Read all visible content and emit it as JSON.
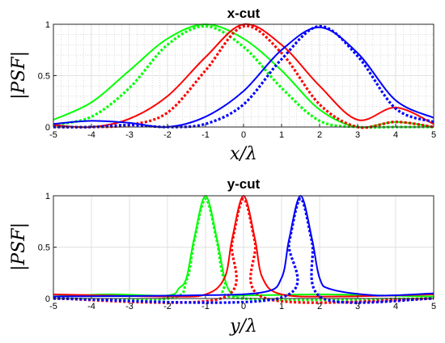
{
  "chart_data": [
    {
      "type": "line",
      "title": "x-cut",
      "xlabel": "x/λ",
      "ylabel": "|PSF|",
      "xlim": [
        -5,
        5
      ],
      "ylim": [
        0,
        1
      ],
      "xticks": [
        "-5",
        "-4",
        "-3",
        "-2",
        "-1",
        "0",
        "1",
        "2",
        "3",
        "4",
        "5"
      ],
      "yticks": [
        "0",
        "0.5",
        "1"
      ],
      "grid": "major and minor",
      "series": [
        {
          "color": "#00ff00",
          "style": "solid",
          "x": [
            -5,
            -4,
            -3,
            -2,
            -1,
            0,
            1,
            2,
            3,
            4,
            5
          ],
          "y": [
            0.07,
            0.24,
            0.55,
            0.86,
            1.0,
            0.86,
            0.55,
            0.17,
            0.0,
            0.05,
            0.0
          ]
        },
        {
          "color": "#00ff00",
          "style": "dotted",
          "x": [
            -5,
            -4,
            -3,
            -2,
            -1,
            0,
            1,
            2,
            3,
            4,
            5
          ],
          "y": [
            0.02,
            0.1,
            0.38,
            0.8,
            0.98,
            0.78,
            0.38,
            0.06,
            0.0,
            0.0,
            0.0
          ]
        },
        {
          "color": "#ff0000",
          "style": "solid",
          "x": [
            -5,
            -4,
            -3,
            -2,
            -1,
            0,
            1,
            2,
            3,
            4,
            5
          ],
          "y": [
            0.02,
            0.0,
            0.08,
            0.3,
            0.68,
            1.0,
            0.8,
            0.4,
            0.07,
            0.19,
            0.03
          ]
        },
        {
          "color": "#ff0000",
          "style": "dotted",
          "x": [
            -5,
            -4,
            -3,
            -2,
            -1,
            0,
            1,
            2,
            3,
            4,
            5
          ],
          "y": [
            0.0,
            0.0,
            0.02,
            0.14,
            0.55,
            0.98,
            0.72,
            0.22,
            0.0,
            0.05,
            0.0
          ]
        },
        {
          "color": "#0000ff",
          "style": "solid",
          "x": [
            -5,
            -4,
            -3,
            -2,
            -1,
            0,
            1,
            2,
            3,
            4,
            5
          ],
          "y": [
            0.03,
            0.06,
            0.04,
            0.0,
            0.1,
            0.35,
            0.75,
            0.97,
            0.72,
            0.26,
            0.09
          ]
        },
        {
          "color": "#0000ff",
          "style": "dotted",
          "x": [
            -5,
            -4,
            -3,
            -2,
            -1,
            0,
            1,
            2,
            3,
            4,
            5
          ],
          "y": [
            0.0,
            0.0,
            0.02,
            0.0,
            0.03,
            0.22,
            0.66,
            0.98,
            0.69,
            0.18,
            0.05
          ]
        }
      ]
    },
    {
      "type": "line",
      "title": "y-cut",
      "xlabel": "y/λ",
      "ylabel": "|PSF|",
      "xlim": [
        -5,
        5
      ],
      "ylim": [
        0,
        1
      ],
      "xticks": [
        "-5",
        "-4",
        "-3",
        "-2",
        "-1",
        "0",
        "1",
        "2",
        "3",
        "4",
        "5"
      ],
      "yticks": [
        "0",
        "0.5",
        "1"
      ],
      "grid": "major",
      "series": [
        {
          "color": "#00ff00",
          "style": "solid",
          "x": [
            -5,
            -3.5,
            -2,
            -1.7,
            -1.5,
            -1.3,
            -1.0,
            -0.7,
            -0.5,
            -0.3,
            0,
            2,
            3.5,
            5
          ],
          "y": [
            0.02,
            0.04,
            0.03,
            0.1,
            0.2,
            0.58,
            1.0,
            0.58,
            0.2,
            0.04,
            0.03,
            0.04,
            0.03,
            0.02
          ]
        },
        {
          "color": "#00ff00",
          "style": "dotted",
          "x": [
            -5,
            -2,
            -1.5,
            -1.3,
            -1.0,
            -0.7,
            -0.5,
            0,
            5
          ],
          "y": [
            0.0,
            0.0,
            0.18,
            0.56,
            0.97,
            0.56,
            0.18,
            0.0,
            0.0
          ]
        },
        {
          "color": "#ff0000",
          "style": "solid",
          "x": [
            -5,
            -2,
            -1,
            -0.5,
            -0.3,
            0,
            0.3,
            0.5,
            1,
            2.5,
            5
          ],
          "y": [
            0.04,
            0.02,
            0.04,
            0.2,
            0.58,
            1.0,
            0.58,
            0.2,
            0.04,
            0.02,
            0.04
          ]
        },
        {
          "color": "#ff0000",
          "style": "dotted",
          "x": [
            -5,
            -0.6,
            -0.3,
            0,
            0.3,
            0.6,
            5
          ],
          "y": [
            0.0,
            0.0,
            0.55,
            0.97,
            0.55,
            0.0,
            0.0
          ]
        },
        {
          "color": "#0000ff",
          "style": "solid",
          "x": [
            -5,
            -1.5,
            0.5,
            1.0,
            1.2,
            1.5,
            1.8,
            2.0,
            2.3,
            3.5,
            5
          ],
          "y": [
            0.02,
            0.03,
            0.06,
            0.2,
            0.58,
            1.0,
            0.58,
            0.2,
            0.09,
            0.03,
            0.05
          ]
        },
        {
          "color": "#0000ff",
          "style": "dotted",
          "x": [
            -5,
            0.9,
            1.2,
            1.5,
            1.8,
            2.1,
            5
          ],
          "y": [
            0.0,
            0.0,
            0.55,
            0.97,
            0.55,
            0.0,
            0.0
          ]
        }
      ]
    }
  ]
}
